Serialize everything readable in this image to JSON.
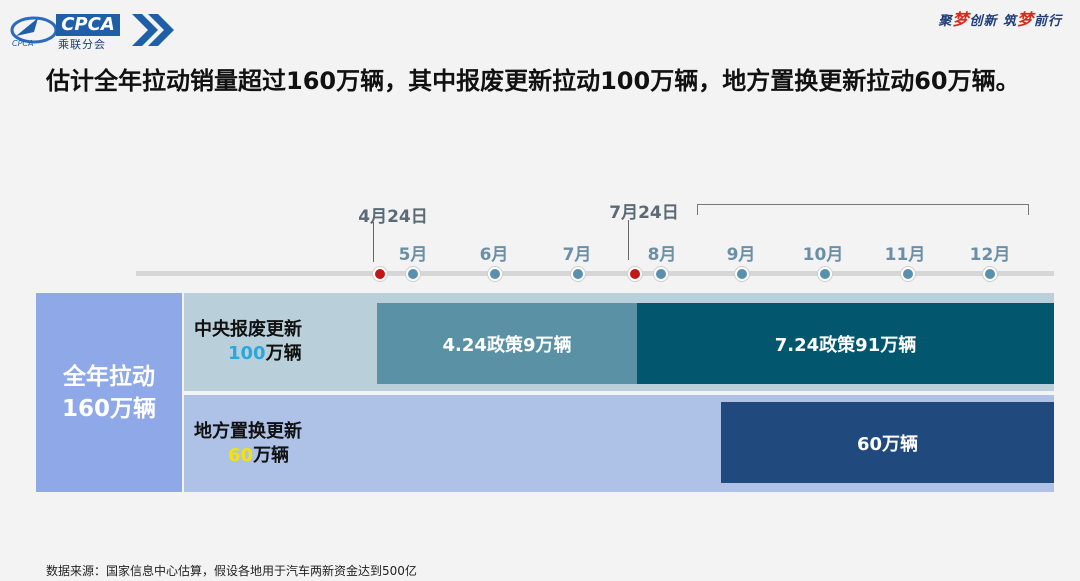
{
  "header": {
    "logo_text": "CPCA",
    "logo_subtext": "乘联分会",
    "slogan_parts": [
      "聚",
      "梦",
      "创新 筑",
      "梦",
      "前行"
    ]
  },
  "title": "估计全年拉动销量超过160万辆，其中报废更新拉动100万辆，地方置换更新拉动60万辆。",
  "timeline": {
    "callouts": [
      "4月24日",
      "7月24日"
    ],
    "months": [
      "5月",
      "6月",
      "7月",
      "8月",
      "9月",
      "10月",
      "11月",
      "12月"
    ]
  },
  "table": {
    "total_label_line1": "全年拉动",
    "total_label_line2": "160万辆",
    "row1": {
      "label_line1": "中央报废更新",
      "label_num": "100",
      "label_unit": "万辆",
      "bar1": "4.24政策9万辆",
      "bar2": "7.24政策91万辆"
    },
    "row2": {
      "label_line1": "地方置换更新",
      "label_num": "60",
      "label_unit": "万辆",
      "bar": "60万辆"
    }
  },
  "source": "数据来源：国家信息中心估算，假设各地用于汽车两新资金达到500亿",
  "colors": {
    "accent_blue": "#5b8fae",
    "accent_red": "#c01818",
    "bar_light": "#5b91a5",
    "bar_dark": "#02576f",
    "bar_navy": "#204a7d"
  }
}
